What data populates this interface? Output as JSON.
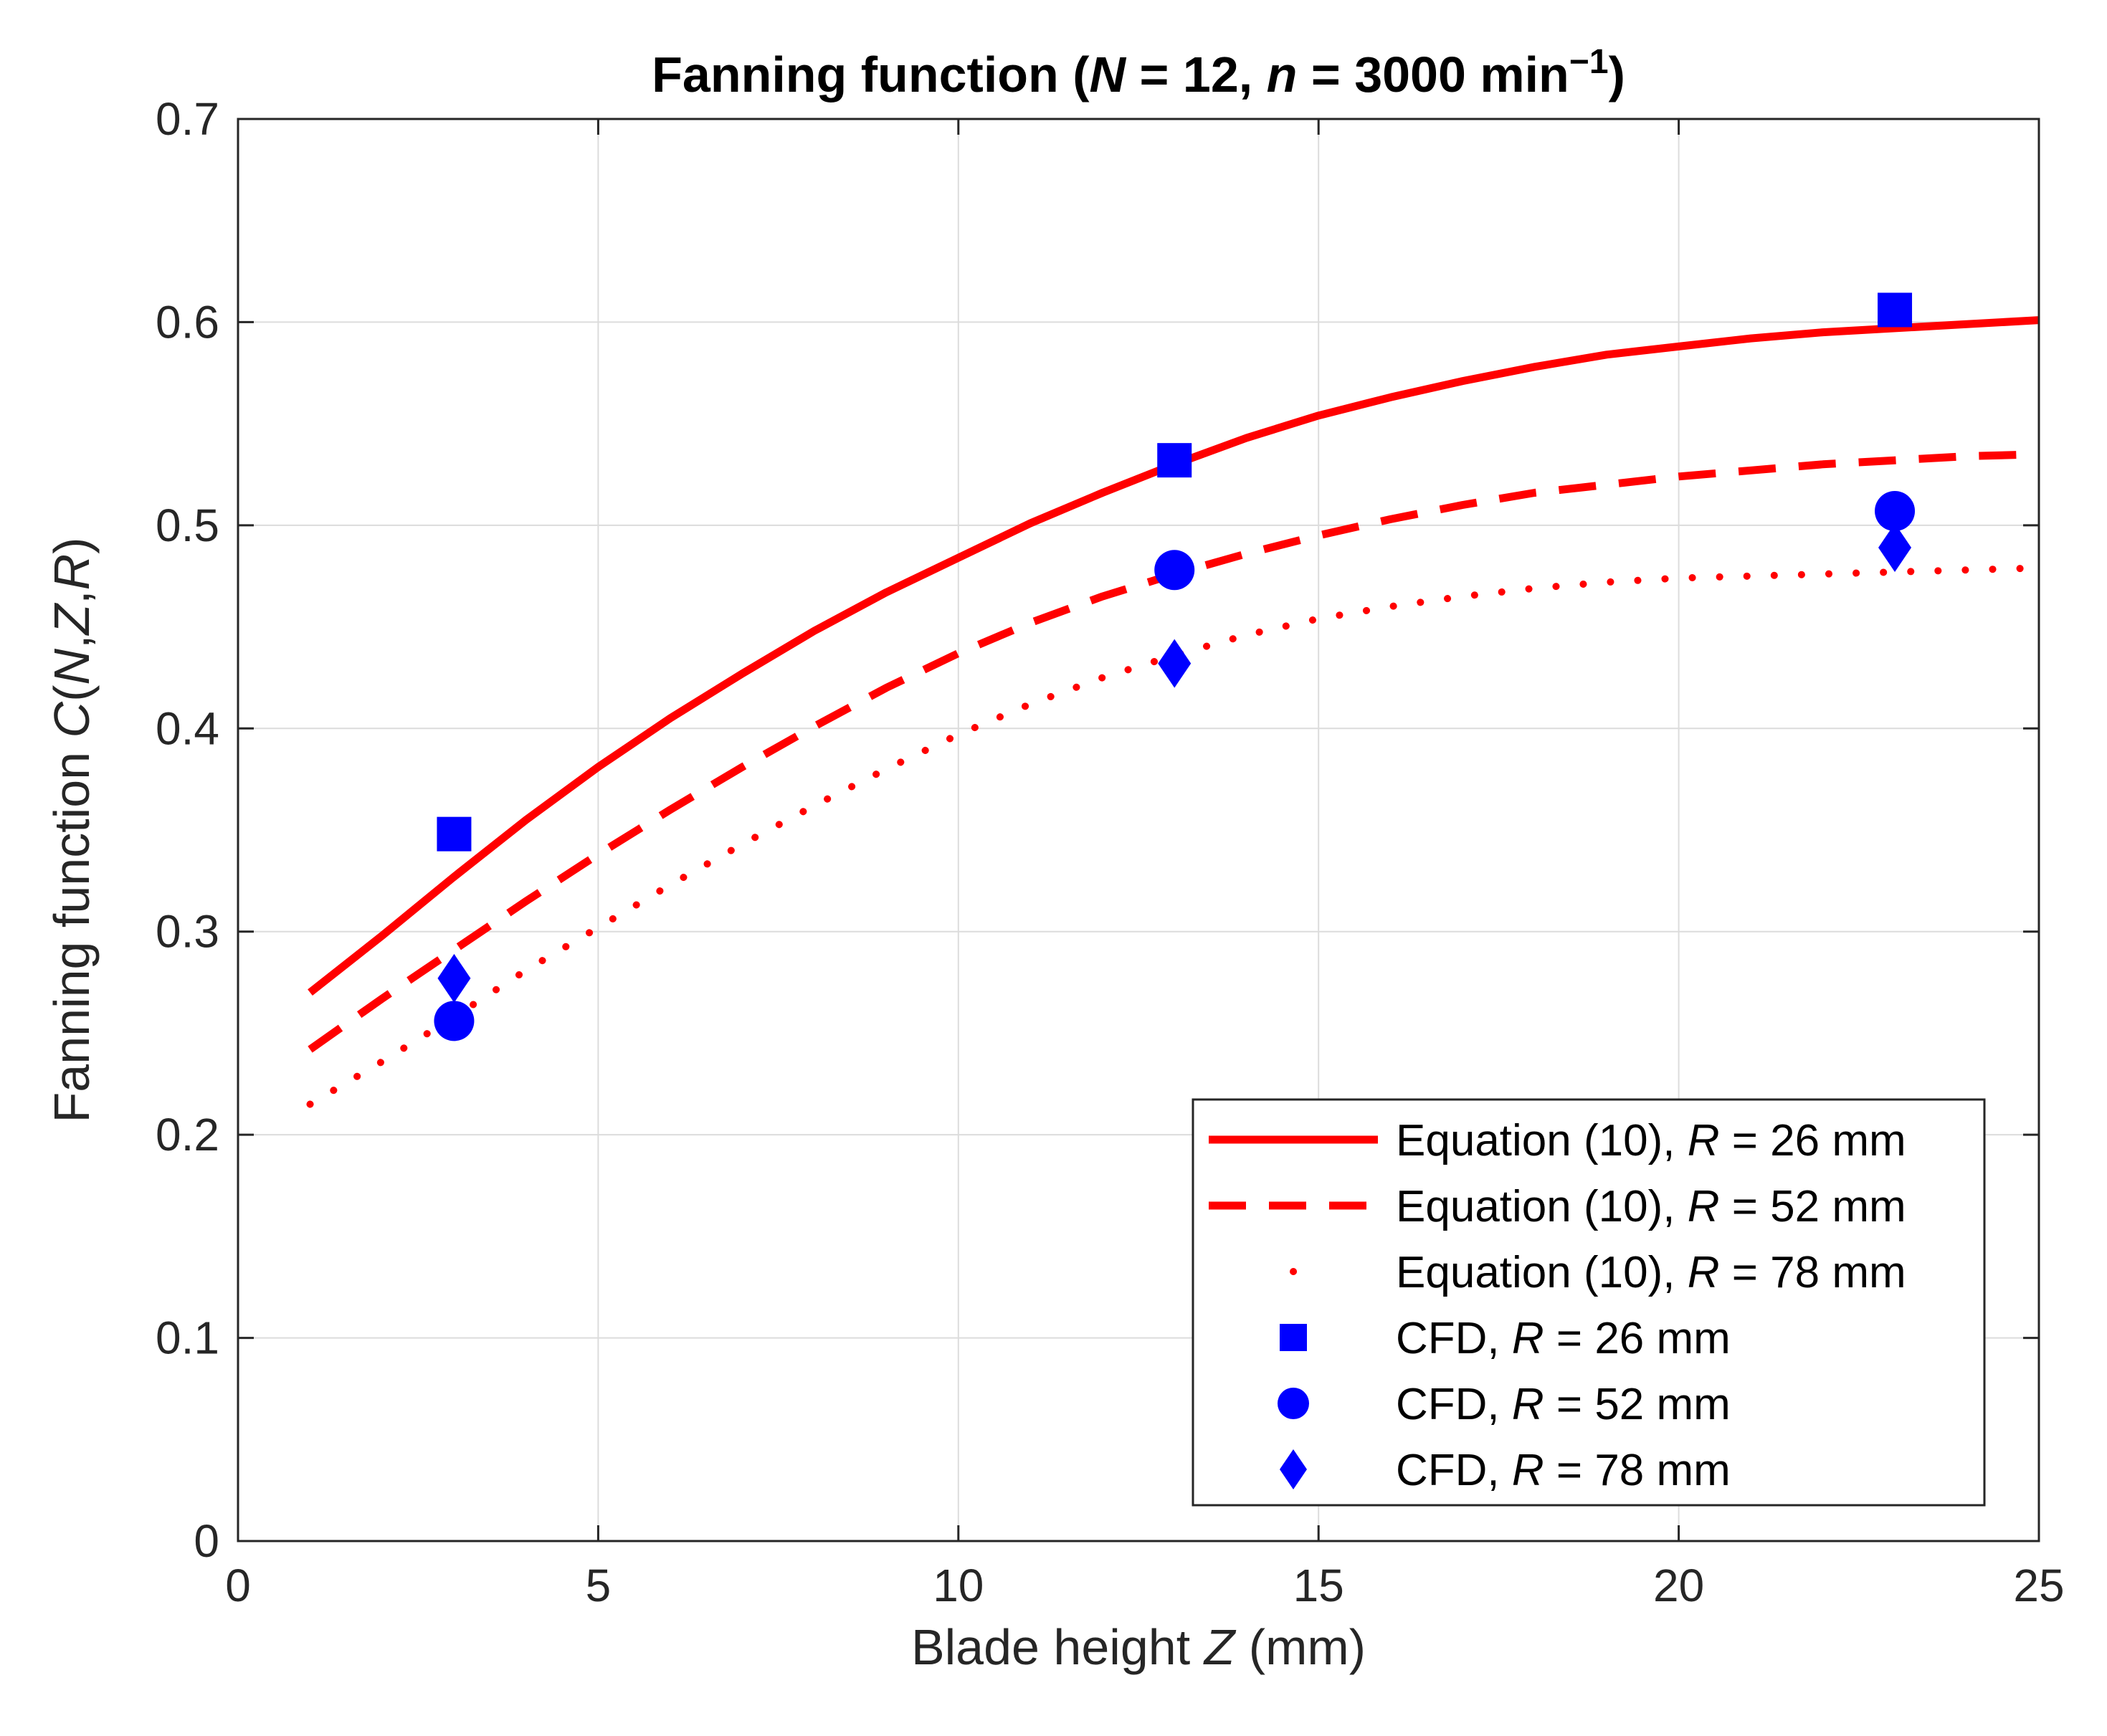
{
  "chart_data": {
    "type": "line",
    "title": {
      "prefix": "Fanning function (",
      "N_symbol": "N",
      "N_eq": " = 12, ",
      "n_symbol": "n",
      "n_eq": " = 3000 min",
      "n_exp": "−1",
      "suffix": ")"
    },
    "xlabel": {
      "prefix": "Blade height ",
      "var": "Z",
      "suffix": " (mm)"
    },
    "ylabel": {
      "prefix": "Fanning function ",
      "var1": "C",
      "paren_open": "(",
      "var2": "N",
      "comma1": ",",
      "var3": "Z",
      "comma2": ",",
      "var4": "R",
      "paren_close": ")"
    },
    "xlim": [
      0,
      25
    ],
    "ylim": [
      0,
      0.7
    ],
    "xticks": [
      "0",
      "5",
      "10",
      "15",
      "20",
      "25"
    ],
    "yticks": [
      "0",
      "0.1",
      "0.2",
      "0.3",
      "0.4",
      "0.5",
      "0.6",
      "0.7"
    ],
    "grid": true,
    "legend_position": "bottom-right",
    "x": [
      1,
      2,
      3,
      4,
      5,
      6,
      7,
      8,
      9,
      10,
      11,
      12,
      13,
      14,
      15,
      16,
      17,
      18,
      19,
      20,
      21,
      22,
      23,
      24,
      25
    ],
    "series": [
      {
        "name": "Equation (10), R = 26 mm",
        "style": "solid",
        "color": "#ff0000",
        "values": [
          0.27,
          0.298,
          0.327,
          0.355,
          0.381,
          0.405,
          0.427,
          0.448,
          0.467,
          0.484,
          0.501,
          0.516,
          0.53,
          0.543,
          0.554,
          0.563,
          0.571,
          0.578,
          0.584,
          0.588,
          0.592,
          0.595,
          0.597,
          0.599,
          0.601
        ]
      },
      {
        "name": "Equation (10), R = 52 mm",
        "style": "dashed",
        "color": "#ff0000",
        "values": [
          0.242,
          0.267,
          0.291,
          0.315,
          0.338,
          0.36,
          0.381,
          0.401,
          0.42,
          0.437,
          0.452,
          0.465,
          0.476,
          0.486,
          0.495,
          0.503,
          0.51,
          0.516,
          0.52,
          0.524,
          0.527,
          0.53,
          0.532,
          0.534,
          0.535
        ]
      },
      {
        "name": "Equation (10), R = 78 mm",
        "style": "dotted",
        "color": "#ff0000",
        "values": [
          0.215,
          0.236,
          0.258,
          0.281,
          0.302,
          0.323,
          0.343,
          0.362,
          0.38,
          0.397,
          0.412,
          0.425,
          0.436,
          0.446,
          0.454,
          0.46,
          0.465,
          0.469,
          0.472,
          0.474,
          0.475,
          0.476,
          0.477,
          0.478,
          0.479
        ]
      }
    ],
    "scatter_series": [
      {
        "name": "CFD, R = 26 mm",
        "marker": "square",
        "color": "#0000ff",
        "points": [
          {
            "x": 3,
            "y": 0.348
          },
          {
            "x": 13,
            "y": 0.532
          },
          {
            "x": 23,
            "y": 0.606
          }
        ]
      },
      {
        "name": "CFD, R = 52 mm",
        "marker": "circle",
        "color": "#0000ff",
        "points": [
          {
            "x": 3,
            "y": 0.256
          },
          {
            "x": 13,
            "y": 0.478
          },
          {
            "x": 23,
            "y": 0.507
          }
        ]
      },
      {
        "name": "CFD, R = 78 mm",
        "marker": "diamond",
        "color": "#0000ff",
        "points": [
          {
            "x": 3,
            "y": 0.277
          },
          {
            "x": 13,
            "y": 0.432
          },
          {
            "x": 23,
            "y": 0.489
          }
        ]
      }
    ],
    "legend": [
      {
        "prefix": "Equation (10), ",
        "var": "R",
        "suffix": " = 26 mm"
      },
      {
        "prefix": "Equation (10), ",
        "var": "R",
        "suffix": " = 52 mm"
      },
      {
        "prefix": "Equation (10), ",
        "var": "R",
        "suffix": " = 78 mm"
      },
      {
        "prefix": "CFD, ",
        "var": "R",
        "suffix": " = 26 mm"
      },
      {
        "prefix": "CFD, ",
        "var": "R",
        "suffix": " = 52 mm"
      },
      {
        "prefix": "CFD, ",
        "var": "R",
        "suffix": " = 78 mm"
      }
    ]
  }
}
